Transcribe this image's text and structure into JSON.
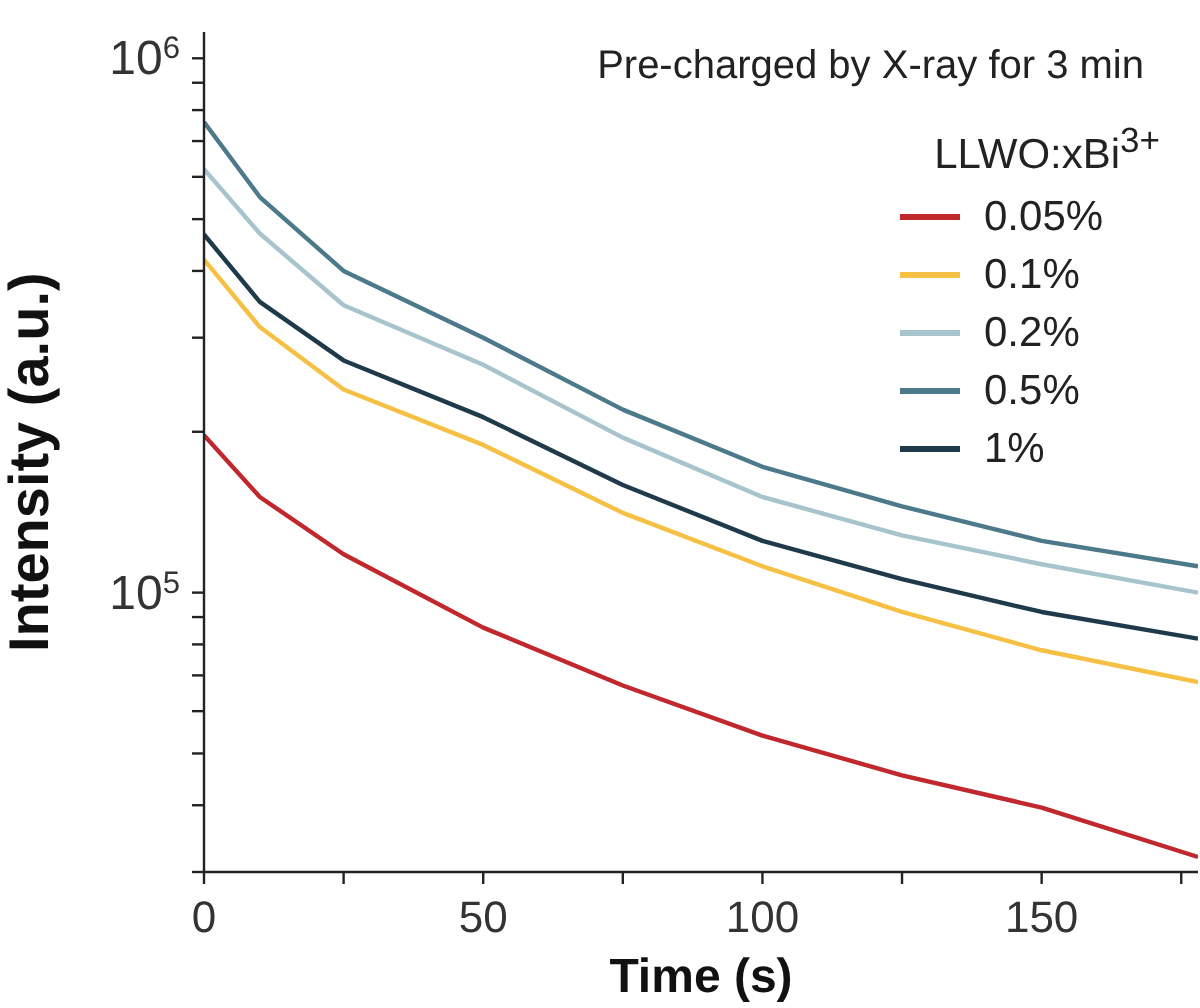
{
  "chart_data": {
    "type": "line",
    "xlabel": "Time (s)",
    "ylabel": "Intensity (a.u.)",
    "annotations": [
      "Pre-charged by X-ray for 3 min"
    ],
    "legend_title": "LLWO:xBi$^{3+}$",
    "legend": "top right",
    "log": "y",
    "marker": "none",
    "line_style": "solid",
    "x": [
      0,
      10,
      25,
      50,
      75,
      100,
      125,
      150,
      178
    ],
    "xlim": [
      0,
      178
    ],
    "xticks": [
      0,
      {
        "value": 25,
        "label": null
      },
      50,
      {
        "value": 75,
        "label": null
      },
      100,
      {
        "value": 125,
        "label": null
      },
      150,
      {
        "value": 175,
        "label": null
      }
    ],
    "ylim": [
      30000,
      1120000
    ],
    "yticks": [
      {
        "value": 30000,
        "label": null
      },
      {
        "value": 40000,
        "label": null
      },
      {
        "value": 50000,
        "label": null
      },
      {
        "value": 60000,
        "label": null
      },
      {
        "value": 70000,
        "label": null
      },
      {
        "value": 80000,
        "label": null
      },
      {
        "value": 90000,
        "label": null
      },
      {
        "value": 100000,
        "label": "10$^{5}$"
      },
      {
        "value": 200000,
        "label": null
      },
      {
        "value": 300000,
        "label": null
      },
      {
        "value": 400000,
        "label": null
      },
      {
        "value": 500000,
        "label": null
      },
      {
        "value": 600000,
        "label": null
      },
      {
        "value": 700000,
        "label": null
      },
      {
        "value": 800000,
        "label": null
      },
      {
        "value": 900000,
        "label": null
      },
      {
        "value": 1000000,
        "label": "10$^{6}$"
      }
    ],
    "series": [
      {
        "name": "0.05%",
        "color": "#c0282d",
        "values": [
          197000,
          151000,
          118000,
          86000,
          67000,
          54000,
          45500,
          39600,
          32000
        ]
      },
      {
        "name": "0.1%",
        "color": "#f6c044",
        "values": [
          420000,
          314000,
          240000,
          189000,
          141000,
          112000,
          92000,
          78000,
          68000
        ]
      },
      {
        "name": "0.2%",
        "color": "#a7c4cc",
        "values": [
          620000,
          470000,
          345000,
          267000,
          195000,
          151000,
          128000,
          113000,
          100000
        ]
      },
      {
        "name": "0.5%",
        "color": "#4d7a8a",
        "values": [
          760000,
          550000,
          400000,
          300000,
          220000,
          172000,
          145000,
          125000,
          112000
        ]
      },
      {
        "name": "1%",
        "color": "#1f3a4a",
        "values": [
          468000,
          350000,
          272000,
          213000,
          159000,
          125000,
          106000,
          92000,
          82000
        ]
      }
    ]
  }
}
